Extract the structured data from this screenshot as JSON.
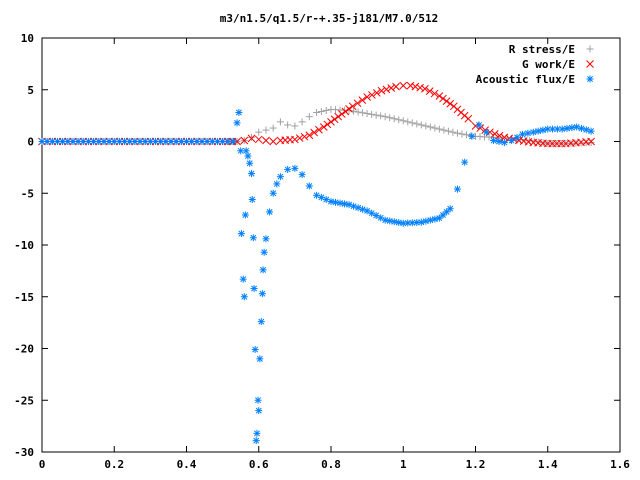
{
  "chart_data": {
    "type": "scatter",
    "title": "m3/n1.5/q1.5/r-+.35-j181/M7.0/512",
    "xlabel": "",
    "ylabel": "",
    "xlim": [
      0,
      1.6
    ],
    "ylim": [
      -30,
      10
    ],
    "xticks": [
      "0",
      "0.2",
      "0.4",
      "0.6",
      "0.8",
      "1",
      "1.2",
      "1.4",
      "1.6"
    ],
    "yticks": [
      "10",
      "5",
      "0",
      "-5",
      "-10",
      "-15",
      "-20",
      "-25",
      "-30"
    ],
    "legend_position": "top-right",
    "grid": false,
    "series": [
      {
        "name": "R stress/E",
        "marker": "plus",
        "color": "#a0a0a0",
        "points": [
          [
            0,
            0
          ],
          [
            0.1,
            0
          ],
          [
            0.2,
            0
          ],
          [
            0.3,
            0
          ],
          [
            0.4,
            0
          ],
          [
            0.5,
            0
          ],
          [
            0.54,
            0
          ],
          [
            0.56,
            0.1
          ],
          [
            0.58,
            0.4
          ],
          [
            0.6,
            0.9
          ],
          [
            0.62,
            1.1
          ],
          [
            0.64,
            1.3
          ],
          [
            0.66,
            1.9
          ],
          [
            0.68,
            1.6
          ],
          [
            0.7,
            1.5
          ],
          [
            0.72,
            1.9
          ],
          [
            0.74,
            2.4
          ],
          [
            0.76,
            2.8
          ],
          [
            0.8,
            3.1
          ],
          [
            0.85,
            3.0
          ],
          [
            0.9,
            2.7
          ],
          [
            0.95,
            2.4
          ],
          [
            1.0,
            2.0
          ],
          [
            1.05,
            1.6
          ],
          [
            1.1,
            1.2
          ],
          [
            1.15,
            0.8
          ],
          [
            1.2,
            0.5
          ],
          [
            1.25,
            0.4
          ],
          [
            1.3,
            0.3
          ],
          [
            1.35,
            0.1
          ],
          [
            1.4,
            -0.2
          ],
          [
            1.45,
            -0.2
          ],
          [
            1.52,
            -0.1
          ]
        ]
      },
      {
        "name": "G work/E",
        "marker": "cross",
        "color": "#ff0000",
        "points": [
          [
            0,
            0
          ],
          [
            0.1,
            0
          ],
          [
            0.2,
            0
          ],
          [
            0.3,
            0
          ],
          [
            0.4,
            0
          ],
          [
            0.5,
            0
          ],
          [
            0.54,
            0
          ],
          [
            0.56,
            0.1
          ],
          [
            0.58,
            0.3
          ],
          [
            0.6,
            0.2
          ],
          [
            0.62,
            0.1
          ],
          [
            0.64,
            0.0
          ],
          [
            0.66,
            0.1
          ],
          [
            0.7,
            0.2
          ],
          [
            0.74,
            0.6
          ],
          [
            0.78,
            1.4
          ],
          [
            0.82,
            2.4
          ],
          [
            0.86,
            3.4
          ],
          [
            0.9,
            4.3
          ],
          [
            0.94,
            4.9
          ],
          [
            0.98,
            5.3
          ],
          [
            1.0,
            5.4
          ],
          [
            1.02,
            5.4
          ],
          [
            1.06,
            5.1
          ],
          [
            1.1,
            4.4
          ],
          [
            1.14,
            3.4
          ],
          [
            1.18,
            2.2
          ],
          [
            1.2,
            1.5
          ],
          [
            1.24,
            0.9
          ],
          [
            1.28,
            0.4
          ],
          [
            1.32,
            0.1
          ],
          [
            1.36,
            -0.1
          ],
          [
            1.4,
            -0.2
          ],
          [
            1.45,
            -0.2
          ],
          [
            1.52,
            0.0
          ]
        ]
      },
      {
        "name": "Acoustic flux/E",
        "marker": "star",
        "color": "#0080ff",
        "points": [
          [
            0,
            0
          ],
          [
            0.1,
            0
          ],
          [
            0.2,
            0
          ],
          [
            0.3,
            0
          ],
          [
            0.4,
            0
          ],
          [
            0.5,
            0
          ],
          [
            0.53,
            0
          ],
          [
            0.54,
            1.8
          ],
          [
            0.545,
            2.8
          ],
          [
            0.55,
            -0.9
          ],
          [
            0.552,
            -8.9
          ],
          [
            0.557,
            -13.3
          ],
          [
            0.56,
            -15.0
          ],
          [
            0.563,
            -7.1
          ],
          [
            0.565,
            -0.9
          ],
          [
            0.57,
            -1.4
          ],
          [
            0.575,
            -2.1
          ],
          [
            0.58,
            -3.1
          ],
          [
            0.582,
            -5.6
          ],
          [
            0.585,
            -9.3
          ],
          [
            0.587,
            -14.2
          ],
          [
            0.59,
            -20.1
          ],
          [
            0.593,
            -28.9
          ],
          [
            0.595,
            -28.2
          ],
          [
            0.598,
            -25.0
          ],
          [
            0.6,
            -26.0
          ],
          [
            0.603,
            -21.0
          ],
          [
            0.607,
            -17.4
          ],
          [
            0.61,
            -14.7
          ],
          [
            0.612,
            -12.4
          ],
          [
            0.615,
            -10.7
          ],
          [
            0.62,
            -9.4
          ],
          [
            0.63,
            -6.8
          ],
          [
            0.64,
            -5.0
          ],
          [
            0.65,
            -4.1
          ],
          [
            0.66,
            -3.4
          ],
          [
            0.68,
            -2.7
          ],
          [
            0.7,
            -2.6
          ],
          [
            0.72,
            -3.2
          ],
          [
            0.74,
            -4.3
          ],
          [
            0.76,
            -5.2
          ],
          [
            0.8,
            -5.8
          ],
          [
            0.85,
            -6.1
          ],
          [
            0.9,
            -6.7
          ],
          [
            0.95,
            -7.6
          ],
          [
            1.0,
            -7.9
          ],
          [
            1.05,
            -7.8
          ],
          [
            1.1,
            -7.4
          ],
          [
            1.13,
            -6.5
          ],
          [
            1.15,
            -4.6
          ],
          [
            1.17,
            -2.0
          ],
          [
            1.19,
            0.5
          ],
          [
            1.21,
            1.6
          ],
          [
            1.23,
            0.9
          ],
          [
            1.25,
            0.1
          ],
          [
            1.28,
            -0.1
          ],
          [
            1.3,
            0.1
          ],
          [
            1.33,
            0.7
          ],
          [
            1.36,
            0.9
          ],
          [
            1.4,
            1.2
          ],
          [
            1.44,
            1.2
          ],
          [
            1.48,
            1.4
          ],
          [
            1.52,
            1.0
          ]
        ]
      }
    ]
  }
}
